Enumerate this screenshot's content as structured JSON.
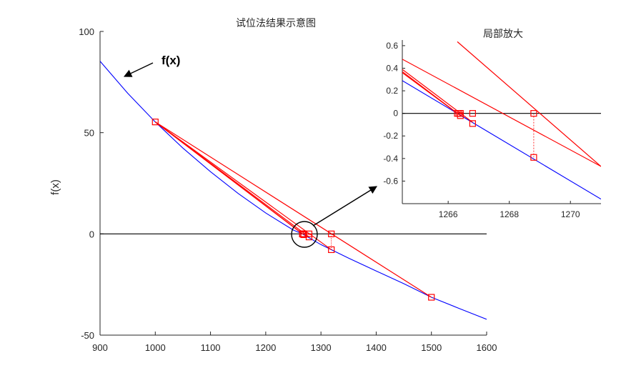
{
  "chart_data": [
    {
      "type": "line",
      "title": "试位法结果示意图",
      "xlabel": "",
      "ylabel": "f(x)",
      "xlim": [
        900,
        1600
      ],
      "ylim": [
        -50,
        100
      ],
      "xticks": [
        "900",
        "1000",
        "1100",
        "1200",
        "1300",
        "1400",
        "1500",
        "1600"
      ],
      "yticks": [
        "-50",
        "0",
        "50",
        "100"
      ],
      "annotation": "f(x)",
      "colors": {
        "curve": "#0000ff",
        "iterations": "#ff0000",
        "zero_line": "#000000"
      },
      "curve_points": [
        [
          900,
          85.3
        ],
        [
          950,
          69.5
        ],
        [
          1000,
          55.3
        ],
        [
          1050,
          42.4
        ],
        [
          1100,
          30.7
        ],
        [
          1150,
          20.0
        ],
        [
          1200,
          10.3
        ],
        [
          1250,
          1.9
        ],
        [
          1266.3,
          0
        ],
        [
          1300,
          -5.3
        ],
        [
          1350,
          -12.0
        ],
        [
          1400,
          -18.3
        ],
        [
          1450,
          -24.6
        ],
        [
          1500,
          -31.3
        ],
        [
          1550,
          -36.8
        ],
        [
          1600,
          -42.2
        ]
      ],
      "iterations": [
        {
          "left": [
            1000,
            55.3
          ],
          "right": [
            1500,
            -31.3
          ],
          "root": 1318.8
        },
        {
          "left": [
            1000,
            55.3
          ],
          "right": [
            1318.8,
            -7.8
          ],
          "root": 1278.4
        },
        {
          "left": [
            1000,
            55.3
          ],
          "right": [
            1278.4,
            -1.5
          ],
          "root": 1268.8
        },
        {
          "left": [
            1000,
            55.3
          ],
          "right": [
            1268.8,
            -0.39
          ],
          "root": 1266.8
        },
        {
          "left": [
            1000,
            55.3
          ],
          "right": [
            1266.8,
            -0.08
          ],
          "root": 1266.4
        }
      ],
      "root_points": [
        [
          1318.8,
          0
        ],
        [
          1278.4,
          0
        ],
        [
          1268.8,
          0
        ],
        [
          1266.8,
          0
        ],
        [
          1266.4,
          0
        ],
        [
          1266.3,
          0
        ]
      ],
      "curve_markers": [
        [
          1000,
          55.3
        ],
        [
          1500,
          -31.3
        ],
        [
          1318.8,
          -7.8
        ],
        [
          1278.4,
          -1.5
        ],
        [
          1268.8,
          -0.39
        ],
        [
          1266.8,
          -0.08
        ]
      ]
    },
    {
      "type": "line",
      "title": "局部放大",
      "xlim": [
        1264.5,
        1271
      ],
      "ylim": [
        -0.8,
        0.65
      ],
      "xticks": [
        "1266",
        "1268",
        "1270"
      ],
      "yticks": [
        "0.6",
        "0.4",
        "0.2",
        "0",
        "-0.2",
        "-0.4",
        "-0.6"
      ],
      "curve_line": [
        [
          1264.5,
          0.29
        ],
        [
          1271,
          -0.76
        ]
      ],
      "red_lines": [
        [
          [
            1264.5,
            0.48
          ],
          [
            1271,
            -0.47
          ]
        ],
        [
          [
            1266.3,
            0.635
          ],
          [
            1271,
            -0.47
          ]
        ],
        [
          [
            1264.5,
            0.39
          ],
          [
            1266.8,
            -0.08
          ]
        ],
        [
          [
            1264.5,
            0.37
          ],
          [
            1266.4,
            -0.02
          ]
        ],
        [
          [
            1264.5,
            0.36
          ],
          [
            1266.35,
            -0.01
          ]
        ]
      ],
      "markers": [
        [
          1268.8,
          0
        ],
        [
          1268.8,
          -0.39
        ],
        [
          1266.8,
          0
        ],
        [
          1266.8,
          -0.09
        ],
        [
          1266.4,
          0
        ],
        [
          1266.4,
          -0.02
        ],
        [
          1266.3,
          0
        ],
        [
          1266.35,
          0
        ]
      ],
      "dotted_segment": [
        [
          1268.8,
          0
        ],
        [
          1268.8,
          -0.39
        ]
      ]
    }
  ]
}
